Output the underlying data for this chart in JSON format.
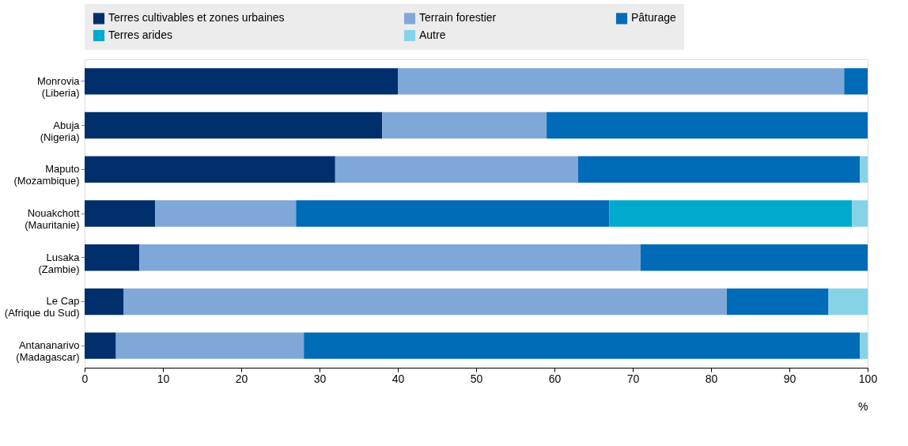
{
  "chart_data": {
    "type": "bar",
    "orientation": "horizontal",
    "stacked": true,
    "legend": "top",
    "xlabel": "%",
    "categories": [
      "Monrovia (Liberia)",
      "Abuja (Nigeria)",
      "Maputo (Mozambique)",
      "Nouakchott (Mauritanie)",
      "Lusaka (Zambie)",
      "Le Cap (Afrique du Sud)",
      "Antananarivo (Madagascar)"
    ],
    "xlim": [
      0,
      100
    ],
    "xticks": [
      0,
      10,
      20,
      30,
      40,
      50,
      60,
      70,
      80,
      90,
      100
    ],
    "series": [
      {
        "name": "Terres cultivables et zones urbaines",
        "color": "#002f6c",
        "values": [
          40,
          38,
          32,
          9,
          7,
          5,
          4
        ]
      },
      {
        "name": "Terrain forestier",
        "color": "#7fa8d9",
        "values": [
          57,
          21,
          31,
          18,
          64,
          77,
          24
        ]
      },
      {
        "name": "Pâturage",
        "color": "#006bb6",
        "values": [
          3,
          41,
          36,
          40,
          29,
          13,
          71
        ]
      },
      {
        "name": "Terres arides",
        "color": "#00aacc",
        "values": [
          null,
          null,
          null,
          31,
          null,
          null,
          null
        ]
      },
      {
        "name": "Autre",
        "color": "#86d3e8",
        "values": [
          null,
          null,
          1,
          2,
          null,
          5,
          1
        ]
      }
    ]
  }
}
